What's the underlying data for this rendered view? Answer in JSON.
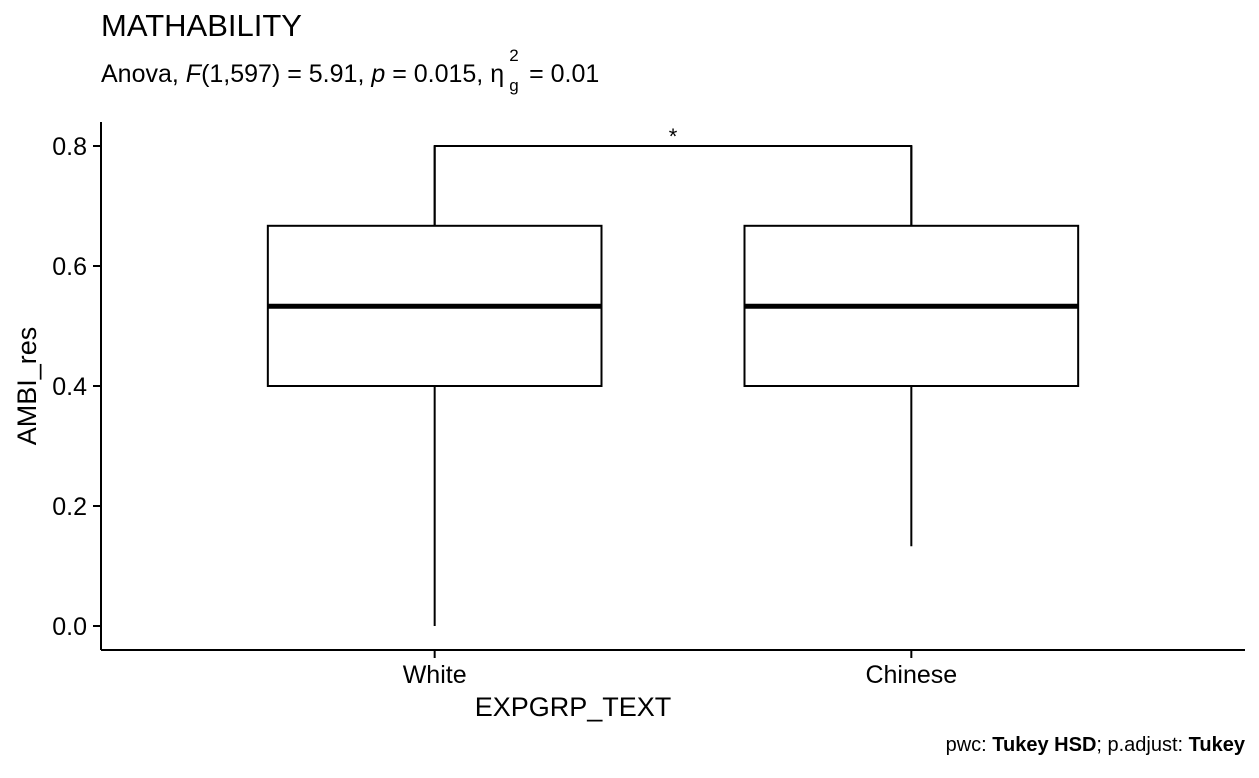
{
  "chart_data": {
    "type": "box",
    "title": "MATHABILITY",
    "subtitle": {
      "test": "Anova,",
      "stat_name": "F",
      "stat_df": "(1,597) = 5.91,",
      "p_name": "p",
      "p_value": "= 0.015,",
      "effect_symbol": "η",
      "effect_sup": "2",
      "effect_sub": "g",
      "effect_value": "= 0.01"
    },
    "xlabel": "EXPGRP_TEXT",
    "ylabel": "AMBI_res",
    "categories": [
      "White",
      "Chinese"
    ],
    "boxes": [
      {
        "category": "White",
        "min": 0.0,
        "q1": 0.4,
        "median": 0.533,
        "q3": 0.667,
        "max": 0.8
      },
      {
        "category": "Chinese",
        "min": 0.133,
        "q1": 0.4,
        "median": 0.533,
        "q3": 0.667,
        "max": 0.8
      }
    ],
    "ylim": [
      -0.04,
      0.84
    ],
    "yticks": [
      0.0,
      0.2,
      0.4,
      0.6,
      0.8
    ],
    "ytick_labels": [
      "0.0",
      "0.2",
      "0.4",
      "0.6",
      "0.8"
    ],
    "comparison": {
      "group1": "White",
      "group2": "Chinese",
      "y": 0.8,
      "label": "*"
    },
    "grid": false
  },
  "caption": {
    "pwc_prefix": "pwc: ",
    "pwc_method": "Tukey HSD",
    "adjust_prefix": "; p.adjust: ",
    "adjust_method": "Tukey"
  }
}
